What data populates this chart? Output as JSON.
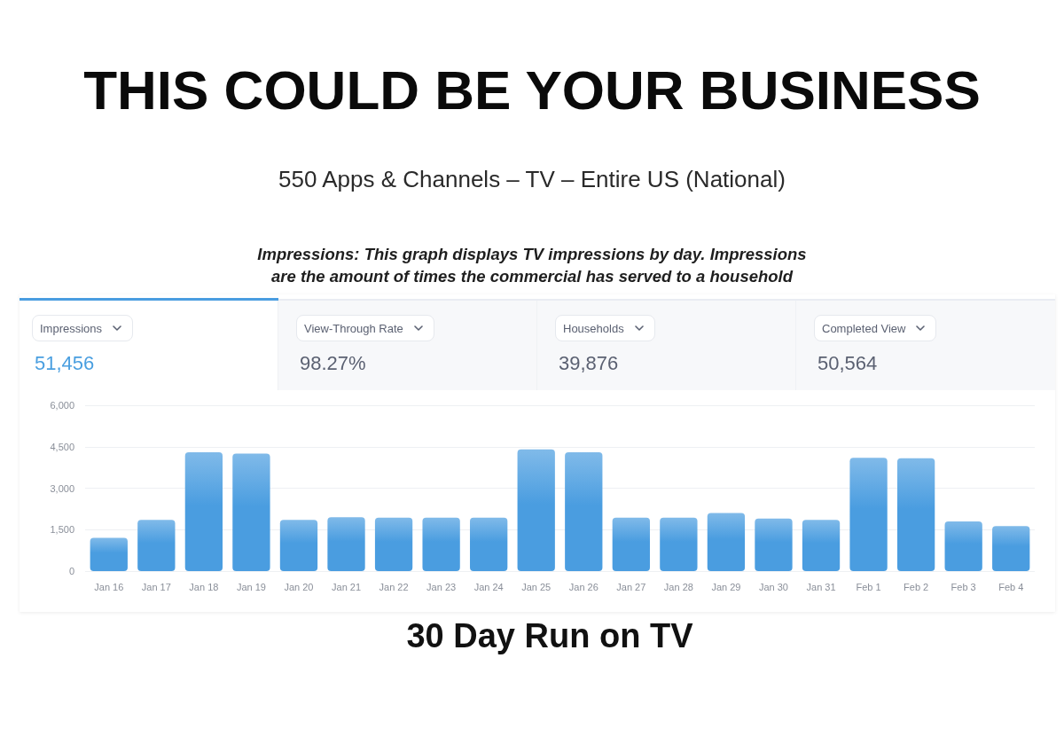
{
  "chart_data": {
    "type": "bar",
    "title": "THIS COULD BE YOUR BUSINESS",
    "subtitle": "550 Apps & Channels – TV – Entire US (National)",
    "annotations": [
      "Impressions: This graph displays TV impressions by day. Impressions are the amount of times the commercial has served to a household",
      "Impressions",
      "51,456",
      "View-Through Rate",
      "98.27%",
      "Households",
      "39,876",
      "Completed View",
      "50,564",
      "30 Day Run on TV"
    ],
    "categories": [
      "Jan 16",
      "Jan 17",
      "Jan 18",
      "Jan 19",
      "Jan 20",
      "Jan 21",
      "Jan 22",
      "Jan 23",
      "Jan 24",
      "Jan 25",
      "Jan 26",
      "Jan 27",
      "Jan 28",
      "Jan 29",
      "Jan 30",
      "Jan 31",
      "Feb 1",
      "Feb 2",
      "Feb 3",
      "Feb 4"
    ],
    "values": [
      1200,
      1850,
      4300,
      4250,
      1850,
      1950,
      1930,
      1930,
      1930,
      4400,
      4300,
      1930,
      1930,
      2100,
      1900,
      1850,
      4100,
      4080,
      1800,
      1630
    ],
    "color": "#4a9de0",
    "ylim": [
      0,
      6000
    ],
    "yticks": [
      0,
      {
        "value": 1500,
        "label": "1,500"
      },
      {
        "value": 3000,
        "label": "3,000"
      },
      {
        "value": 4500,
        "label": "4,500"
      },
      {
        "value": 6000,
        "label": "6,000"
      }
    ],
    "grid": "y"
  }
}
